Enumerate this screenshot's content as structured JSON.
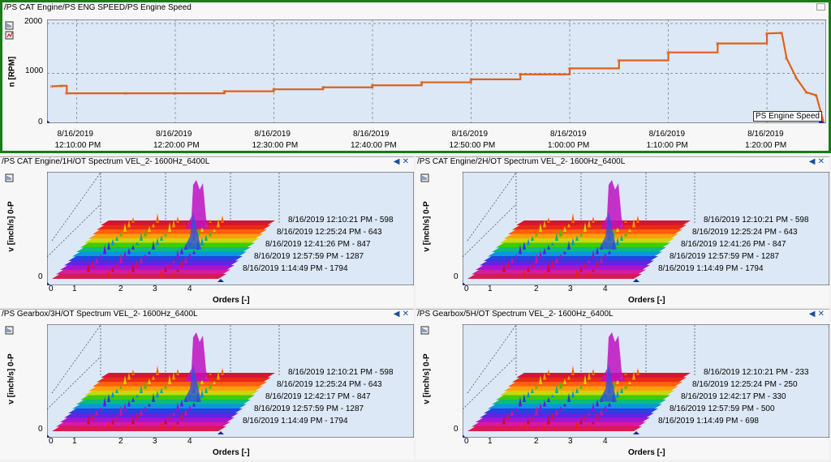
{
  "top": {
    "title": "/PS CAT Engine/PS ENG SPEED/PS Engine Speed",
    "ylabel": "n [RPM]",
    "legend": "PS Engine Speed",
    "yticks": [
      "2000",
      "1000",
      "0"
    ],
    "xticks": [
      {
        "date": "8/16/2019",
        "time": "12:10:00 PM"
      },
      {
        "date": "8/16/2019",
        "time": "12:20:00 PM"
      },
      {
        "date": "8/16/2019",
        "time": "12:30:00 PM"
      },
      {
        "date": "8/16/2019",
        "time": "12:40:00 PM"
      },
      {
        "date": "8/16/2019",
        "time": "12:50:00 PM"
      },
      {
        "date": "8/16/2019",
        "time": "1:00:00 PM"
      },
      {
        "date": "8/16/2019",
        "time": "1:10:00 PM"
      },
      {
        "date": "8/16/2019",
        "time": "1:20:00 PM"
      }
    ]
  },
  "panels": [
    {
      "title": "/PS CAT Engine/1H/OT Spectrum VEL_2- 1600Hz_6400L",
      "ylabel": "v [inch/s] 0-P",
      "xlabel": "Orders [-]",
      "lines": [
        "8/16/2019 12:10:21 PM - 598",
        "8/16/2019 12:25:24 PM - 643",
        "8/16/2019 12:41:26 PM - 847",
        "8/16/2019 12:57:59 PM - 1287",
        "8/16/2019 1:14:49 PM - 1794"
      ]
    },
    {
      "title": "/PS CAT Engine/2H/OT Spectrum VEL_2- 1600Hz_6400L",
      "ylabel": "v [inch/s] 0-P",
      "xlabel": "Orders [-]",
      "lines": [
        "8/16/2019 12:10:21 PM - 598",
        "8/16/2019 12:25:24 PM - 643",
        "8/16/2019 12:41:26 PM - 847",
        "8/16/2019 12:57:59 PM - 1287",
        "8/16/2019 1:14:49 PM - 1794"
      ]
    },
    {
      "title": "/PS Gearbox/3H/OT Spectrum VEL_2- 1600Hz_6400L",
      "ylabel": "v [inch/s] 0-P",
      "xlabel": "Orders [-]",
      "lines": [
        "8/16/2019 12:10:21 PM - 598",
        "8/16/2019 12:25:24 PM - 643",
        "8/16/2019 12:42:17 PM - 847",
        "8/16/2019 12:57:59 PM - 1287",
        "8/16/2019 1:14:49 PM - 1794"
      ]
    },
    {
      "title": "/PS Gearbox/5H/OT Spectrum VEL_2- 1600Hz_6400L",
      "ylabel": "v [inch/s] 0-P",
      "xlabel": "Orders [-]",
      "lines": [
        "8/16/2019 12:10:21 PM - 233",
        "8/16/2019 12:25:24 PM - 250",
        "8/16/2019 12:42:17 PM - 330",
        "8/16/2019 12:57:59 PM - 500",
        "8/16/2019 1:14:49 PM - 698"
      ]
    }
  ],
  "xticks_orders": [
    "0",
    "1",
    "2",
    "3",
    "4"
  ],
  "yzero": "0",
  "colors": {
    "line": "#e0601a",
    "plot_bg": "#dce8f5",
    "frame_active": "#1a7a1a",
    "title_bar": "#ffffff"
  },
  "chart_data": [
    {
      "type": "line",
      "title": "/PS CAT Engine/PS ENG SPEED/PS Engine Speed",
      "ylabel": "n [RPM]",
      "xlabel": "",
      "ylim": [
        0,
        2000
      ],
      "series": [
        {
          "name": "PS Engine Speed",
          "x": [
            "12:07:30",
            "12:08:30",
            "12:09:00",
            "12:15:00",
            "12:20:00",
            "12:25:00",
            "12:30:00",
            "12:35:00",
            "12:40:00",
            "12:45:00",
            "12:50:00",
            "12:55:00",
            "13:00:00",
            "13:05:00",
            "13:10:00",
            "13:15:00",
            "13:20:00",
            "13:21:30",
            "13:22:00",
            "13:23:00",
            "13:24:00",
            "13:25:00",
            "13:25:45"
          ],
          "y": [
            740,
            750,
            600,
            600,
            600,
            640,
            680,
            720,
            760,
            820,
            880,
            980,
            1100,
            1260,
            1420,
            1600,
            1800,
            1810,
            1300,
            900,
            620,
            560,
            10
          ]
        }
      ],
      "grid": true,
      "legend": "bottom-right"
    },
    {
      "type": "area",
      "title": "/PS CAT Engine/1H/OT Spectrum VEL_2- 1600Hz_6400L",
      "xlabel": "Orders [-]",
      "ylabel": "v [inch/s] 0-P",
      "xlim": [
        0,
        5
      ],
      "series": [
        {
          "name": "8/16/2019 12:10:21 PM - 598"
        },
        {
          "name": "8/16/2019 12:25:24 PM - 643"
        },
        {
          "name": "8/16/2019 12:41:26 PM - 847"
        },
        {
          "name": "8/16/2019 12:57:59 PM - 1287"
        },
        {
          "name": "8/16/2019 1:14:49 PM - 1794"
        }
      ]
    },
    {
      "type": "area",
      "title": "/PS CAT Engine/2H/OT Spectrum VEL_2- 1600Hz_6400L",
      "xlabel": "Orders [-]",
      "ylabel": "v [inch/s] 0-P",
      "xlim": [
        0,
        5
      ],
      "series": [
        {
          "name": "8/16/2019 12:10:21 PM - 598"
        },
        {
          "name": "8/16/2019 12:25:24 PM - 643"
        },
        {
          "name": "8/16/2019 12:41:26 PM - 847"
        },
        {
          "name": "8/16/2019 12:57:59 PM - 1287"
        },
        {
          "name": "8/16/2019 1:14:49 PM - 1794"
        }
      ]
    },
    {
      "type": "area",
      "title": "/PS Gearbox/3H/OT Spectrum VEL_2- 1600Hz_6400L",
      "xlabel": "Orders [-]",
      "ylabel": "v [inch/s] 0-P",
      "xlim": [
        0,
        5
      ],
      "series": [
        {
          "name": "8/16/2019 12:10:21 PM - 598"
        },
        {
          "name": "8/16/2019 12:25:24 PM - 643"
        },
        {
          "name": "8/16/2019 12:42:17 PM - 847"
        },
        {
          "name": "8/16/2019 12:57:59 PM - 1287"
        },
        {
          "name": "8/16/2019 1:14:49 PM - 1794"
        }
      ]
    },
    {
      "type": "area",
      "title": "/PS Gearbox/5H/OT Spectrum VEL_2- 1600Hz_6400L",
      "xlabel": "Orders [-]",
      "ylabel": "v [inch/s] 0-P",
      "xlim": [
        0,
        5
      ],
      "series": [
        {
          "name": "8/16/2019 12:10:21 PM - 233"
        },
        {
          "name": "8/16/2019 12:25:24 PM - 250"
        },
        {
          "name": "8/16/2019 12:42:17 PM - 330"
        },
        {
          "name": "8/16/2019 12:57:59 PM - 500"
        },
        {
          "name": "8/16/2019 1:14:49 PM - 698"
        }
      ]
    }
  ]
}
